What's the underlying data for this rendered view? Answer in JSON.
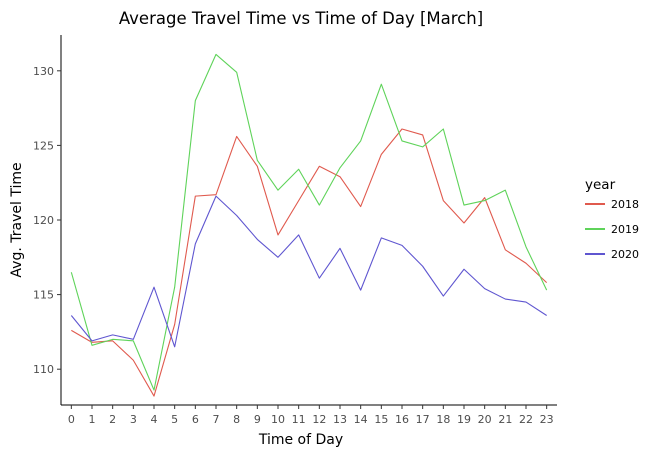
{
  "chart_data": {
    "type": "line",
    "title": "Average Travel Time vs Time of Day [March]",
    "xlabel": "Time of Day",
    "ylabel": "Avg. Travel Time",
    "x": [
      0,
      1,
      2,
      3,
      4,
      5,
      6,
      7,
      8,
      9,
      10,
      11,
      12,
      13,
      14,
      15,
      16,
      17,
      18,
      19,
      20,
      21,
      22,
      23
    ],
    "x_tick_labels": [
      "0",
      "1",
      "2",
      "3",
      "4",
      "5",
      "6",
      "7",
      "8",
      "9",
      "10",
      "11",
      "12",
      "13",
      "14",
      "15",
      "16",
      "17",
      "18",
      "19",
      "20",
      "21",
      "22",
      "23"
    ],
    "xlim": [
      -0.5,
      23.5
    ],
    "ylim": [
      107.6,
      132.4
    ],
    "y_ticks": [
      110,
      115,
      120,
      125,
      130
    ],
    "y_tick_labels": [
      "110",
      "115",
      "120",
      "125",
      "130"
    ],
    "grid": false,
    "legend": {
      "title": "year",
      "position": "right"
    },
    "series": [
      {
        "name": "2018",
        "color": "#e05a4e",
        "values": [
          112.6,
          111.8,
          111.9,
          110.6,
          108.2,
          113.0,
          121.6,
          121.7,
          125.6,
          123.6,
          119.0,
          121.3,
          123.6,
          122.9,
          120.9,
          124.4,
          126.1,
          125.7,
          121.3,
          119.8,
          121.5,
          118.0,
          117.1,
          115.8
        ]
      },
      {
        "name": "2019",
        "color": "#5fd35a",
        "values": [
          116.5,
          111.6,
          112.0,
          111.9,
          108.6,
          115.5,
          128.0,
          131.1,
          129.9,
          124.0,
          122.0,
          123.4,
          121.0,
          123.5,
          125.3,
          129.1,
          125.3,
          124.9,
          126.1,
          121.0,
          121.3,
          122.0,
          118.2,
          115.3
        ]
      },
      {
        "name": "2020",
        "color": "#5f56d0",
        "values": [
          113.6,
          111.9,
          112.3,
          112.0,
          115.5,
          111.5,
          118.4,
          121.6,
          120.3,
          118.7,
          117.5,
          119.0,
          116.1,
          118.1,
          115.3,
          118.8,
          118.3,
          116.9,
          114.9,
          116.7,
          115.4,
          114.7,
          114.5,
          113.6
        ]
      }
    ]
  }
}
